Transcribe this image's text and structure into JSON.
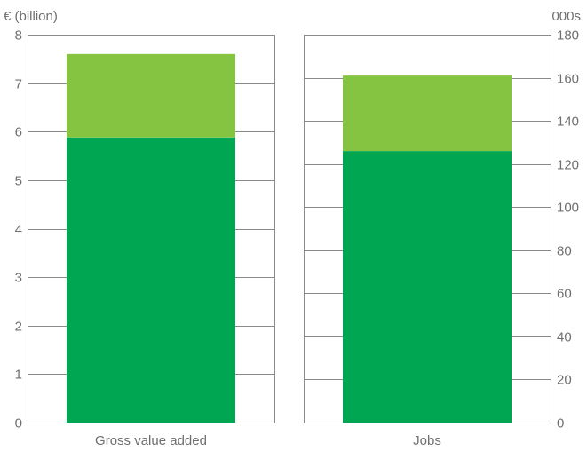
{
  "chart_data": [
    {
      "type": "bar",
      "stacked": true,
      "categories": [
        "Gross value added"
      ],
      "series": [
        {
          "values": [
            5.88
          ],
          "color": "#00a651"
        },
        {
          "values": [
            1.72
          ],
          "color": "#84c441"
        }
      ],
      "ylabel": "€ (billion)",
      "ylim": [
        0,
        8
      ],
      "yticks": [
        "0",
        "1",
        "2",
        "3",
        "4",
        "5",
        "6",
        "7",
        "8"
      ],
      "axis_side": "left",
      "grid": true
    },
    {
      "type": "bar",
      "stacked": true,
      "categories": [
        "Jobs"
      ],
      "series": [
        {
          "values": [
            126
          ],
          "color": "#00a651"
        },
        {
          "values": [
            35
          ],
          "color": "#84c441"
        }
      ],
      "ylabel": "000s",
      "ylim": [
        0,
        180
      ],
      "yticks": [
        "0",
        "20",
        "40",
        "60",
        "80",
        "100",
        "120",
        "140",
        "160",
        "180"
      ],
      "axis_side": "right",
      "grid": true
    }
  ],
  "colors": {
    "base_segment": "#00a651",
    "top_segment": "#84c441",
    "axis": "#8a8a8a",
    "text": "#6f6f6f"
  }
}
